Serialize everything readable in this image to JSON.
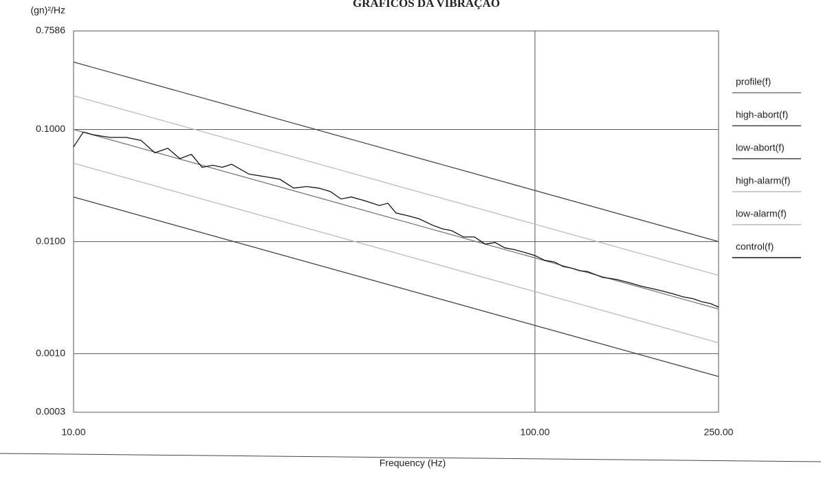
{
  "chart_data": {
    "type": "line",
    "title": "GRÁFICOS DA VIBRAÇÃO",
    "y_label": "(gn)²/Hz",
    "x_label": "Frequency (Hz)",
    "log_x": true,
    "log_y": true,
    "grid": true,
    "legend": "right",
    "xlim": [
      10,
      250
    ],
    "ylim": [
      0.0003,
      0.7586
    ],
    "xticks": [
      {
        "value": 10,
        "label": "10.00"
      },
      {
        "value": 100,
        "label": "100.00"
      },
      {
        "value": 250,
        "label": "250.00"
      }
    ],
    "yticks": [
      {
        "value": 0.0003,
        "label": "0.0003"
      },
      {
        "value": 0.001,
        "label": "0.0010"
      },
      {
        "value": 0.01,
        "label": "0.0100"
      },
      {
        "value": 0.1,
        "label": "0.1000"
      },
      {
        "value": 0.7586,
        "label": "0.7586"
      }
    ],
    "series": [
      {
        "name": "profile(f)",
        "color": "#777777",
        "x": [
          10,
          250
        ],
        "values": [
          0.1,
          0.0025
        ]
      },
      {
        "name": "high-abort(f)",
        "color": "#444444",
        "x": [
          10,
          250
        ],
        "values": [
          0.4,
          0.01
        ]
      },
      {
        "name": "low-abort(f)",
        "color": "#444444",
        "x": [
          10,
          250
        ],
        "values": [
          0.025,
          0.000625
        ]
      },
      {
        "name": "high-alarm(f)",
        "color": "#bbbbbb",
        "x": [
          10,
          250
        ],
        "values": [
          0.2,
          0.005
        ]
      },
      {
        "name": "low-alarm(f)",
        "color": "#bbbbbb",
        "x": [
          10,
          250
        ],
        "values": [
          0.05,
          0.00125
        ]
      },
      {
        "name": "control(f)",
        "color": "#111111",
        "x": [
          10,
          10.5,
          11,
          12,
          13,
          14,
          15,
          16,
          17,
          18,
          19,
          20,
          21,
          22,
          24,
          26,
          28,
          30,
          32,
          34,
          36,
          38,
          40,
          43,
          46,
          48,
          50,
          53,
          56,
          60,
          63,
          66,
          70,
          74,
          78,
          82,
          86,
          90,
          95,
          100,
          105,
          110,
          115,
          120,
          125,
          130,
          140,
          150,
          160,
          170,
          180,
          190,
          200,
          210,
          220,
          230,
          240,
          250
        ],
        "values": [
          0.07,
          0.095,
          0.09,
          0.085,
          0.085,
          0.08,
          0.062,
          0.068,
          0.055,
          0.06,
          0.046,
          0.048,
          0.046,
          0.049,
          0.04,
          0.038,
          0.036,
          0.03,
          0.031,
          0.03,
          0.028,
          0.024,
          0.025,
          0.023,
          0.021,
          0.022,
          0.018,
          0.017,
          0.016,
          0.014,
          0.013,
          0.0125,
          0.011,
          0.011,
          0.0095,
          0.0098,
          0.0088,
          0.0085,
          0.008,
          0.0075,
          0.0068,
          0.0066,
          0.006,
          0.0058,
          0.0055,
          0.0054,
          0.0048,
          0.0046,
          0.0043,
          0.004,
          0.0038,
          0.0036,
          0.0034,
          0.0032,
          0.0031,
          0.0029,
          0.0028,
          0.0026
        ]
      }
    ]
  }
}
